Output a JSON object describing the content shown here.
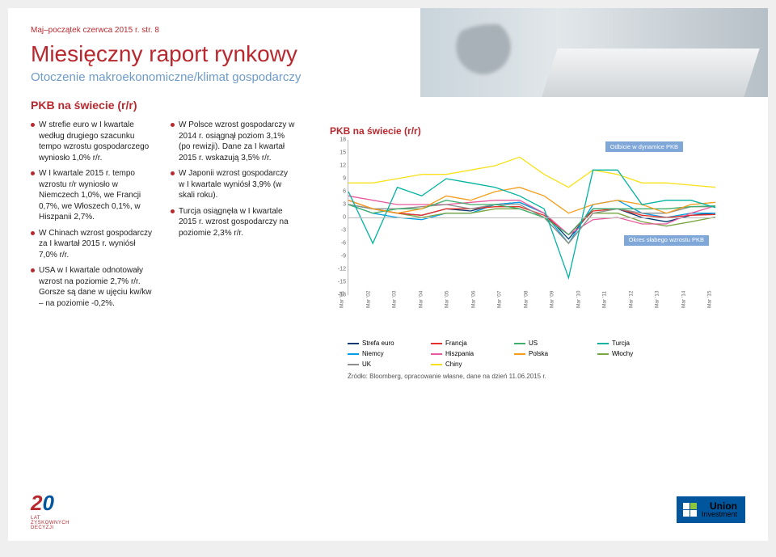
{
  "header": {
    "line": "Maj–początek czerwca 2015 r.   str. 8"
  },
  "title": "Miesięczny raport rynkowy",
  "subtitle": "Otoczenie makroekonomiczne/klimat gospodarczy",
  "section_title": "PKB na świecie (r/r)",
  "col1_bullets": [
    "W strefie euro w I kwartale według drugiego szacunku tempo wzrostu gospodarczego wyniosło 1,0% r/r.",
    "W I kwartale 2015 r. tempo wzrostu r/r wyniosło w Niemczech 1,0%, we Francji 0,7%, we Włoszech 0,1%, w Hiszpanii 2,7%.",
    "W Chinach wzrost gospodarczy za I kwartał 2015 r. wyniósł 7,0% r/r.",
    "USA w I kwartale odnotowały wzrost na poziomie 2,7% r/r. Gorsze są dane w ujęciu kw/kw – na poziomie -0,2%."
  ],
  "col2_bullets": [
    "W Polsce wzrost gospodarczy w 2014 r. osiągnął poziom 3,1% (po rewizji). Dane za I kwartał 2015 r. wskazują 3,5% r/r.",
    "W Japonii wzrost gospodarczy w I kwartale wyniósł 3,9% (w skali roku).",
    "Turcja osiągnęła w I kwartale 2015 r. wzrost gospodarczy na poziomie 2,3% r/r."
  ],
  "chart": {
    "title": "PKB na świecie (r/r)",
    "ylim": [
      -18,
      18
    ],
    "yticks": [
      18,
      15,
      12,
      9,
      6,
      3,
      0,
      -3,
      -6,
      -9,
      -12,
      -15,
      -18
    ],
    "xticks": [
      "Mar '01",
      "Mar '02",
      "Mar '03",
      "Mar '04",
      "Mar '05",
      "Mar '06",
      "Mar '07",
      "Mar '08",
      "Mar '09",
      "Mar '10",
      "Mar '11",
      "Mar '12",
      "Mar '13",
      "Mar '14",
      "Mar '15"
    ],
    "anno1": "Odbicie w dynamice PKB",
    "anno2": "Okres słabego wzrostu PKB",
    "series": [
      {
        "name": "Strefa euro",
        "color": "#003a70",
        "y": [
          3,
          2,
          1,
          0.5,
          2,
          1.5,
          3,
          3.5,
          1,
          -5,
          2,
          2,
          0,
          -1,
          0.5,
          1
        ]
      },
      {
        "name": "Niemcy",
        "color": "#009fe3",
        "y": [
          3,
          1,
          0,
          -0.5,
          1,
          1,
          3,
          3.5,
          1,
          -6,
          3,
          4,
          1,
          0,
          1,
          1
        ]
      },
      {
        "name": "Włochy",
        "color": "#7aa641",
        "y": [
          3,
          2,
          1,
          0,
          1,
          1,
          2,
          2,
          0,
          -6,
          1,
          1,
          -1,
          -2,
          -1,
          0.1
        ]
      },
      {
        "name": "Francja",
        "color": "#e7302a",
        "y": [
          4,
          2,
          1,
          0.5,
          2,
          2,
          2.5,
          2.5,
          0.5,
          -4,
          1.5,
          2,
          0.5,
          0,
          0.5,
          0.7
        ]
      },
      {
        "name": "Hiszpania",
        "color": "#e85b9e",
        "y": [
          5,
          4,
          3,
          3,
          3,
          3.5,
          4,
          4,
          1,
          -4,
          -0.5,
          0,
          -1.5,
          -1.5,
          1,
          2.7
        ]
      },
      {
        "name": "UK",
        "color": "#8e8e8e",
        "y": [
          3,
          2,
          2,
          2.5,
          3,
          2,
          3,
          3,
          0,
          -6,
          1,
          2,
          1,
          1,
          2.5,
          2.5
        ]
      },
      {
        "name": "US",
        "color": "#3fae6a",
        "y": [
          3,
          1,
          2,
          2,
          4,
          3,
          3,
          2,
          0,
          -4,
          2,
          2,
          2,
          2,
          2.5,
          2.7
        ]
      },
      {
        "name": "Polska",
        "color": "#f59c1a",
        "y": [
          4,
          2,
          1,
          2,
          5,
          4,
          6,
          7,
          5,
          1,
          3,
          4,
          3,
          1,
          3,
          3.5
        ]
      },
      {
        "name": "Chiny",
        "color": "#f7e11b",
        "y": [
          8,
          8,
          9,
          10,
          10,
          11,
          12,
          14,
          10,
          7,
          11,
          10,
          8,
          8,
          7.5,
          7
        ]
      },
      {
        "name": "Turcja",
        "color": "#00b3a1",
        "y": [
          6,
          -6,
          7,
          5,
          9,
          8,
          7,
          5,
          2,
          -14,
          11,
          11,
          3,
          4,
          4,
          2.3
        ]
      }
    ],
    "legend": [
      {
        "label": "Strefa euro",
        "color": "#003a70"
      },
      {
        "label": "Francja",
        "color": "#e7302a"
      },
      {
        "label": "US",
        "color": "#3fae6a"
      },
      {
        "label": "Turcja",
        "color": "#00b3a1"
      },
      {
        "label": "Niemcy",
        "color": "#009fe3"
      },
      {
        "label": "Hiszpania",
        "color": "#e85b9e"
      },
      {
        "label": "Polska",
        "color": "#f59c1a"
      },
      {
        "label": "Włochy",
        "color": "#7aa641"
      },
      {
        "label": "UK",
        "color": "#8e8e8e"
      },
      {
        "label": "Chiny",
        "color": "#f7e11b"
      }
    ],
    "source": "Źródło: Bloomberg, opracowanie własne, dane na dzień 11.06.2015 r."
  },
  "footer": {
    "left_caption": "LAT ZYSKOWNYCH DECYZJI",
    "right_brand": "Union",
    "right_brand_sub": "Investment"
  }
}
